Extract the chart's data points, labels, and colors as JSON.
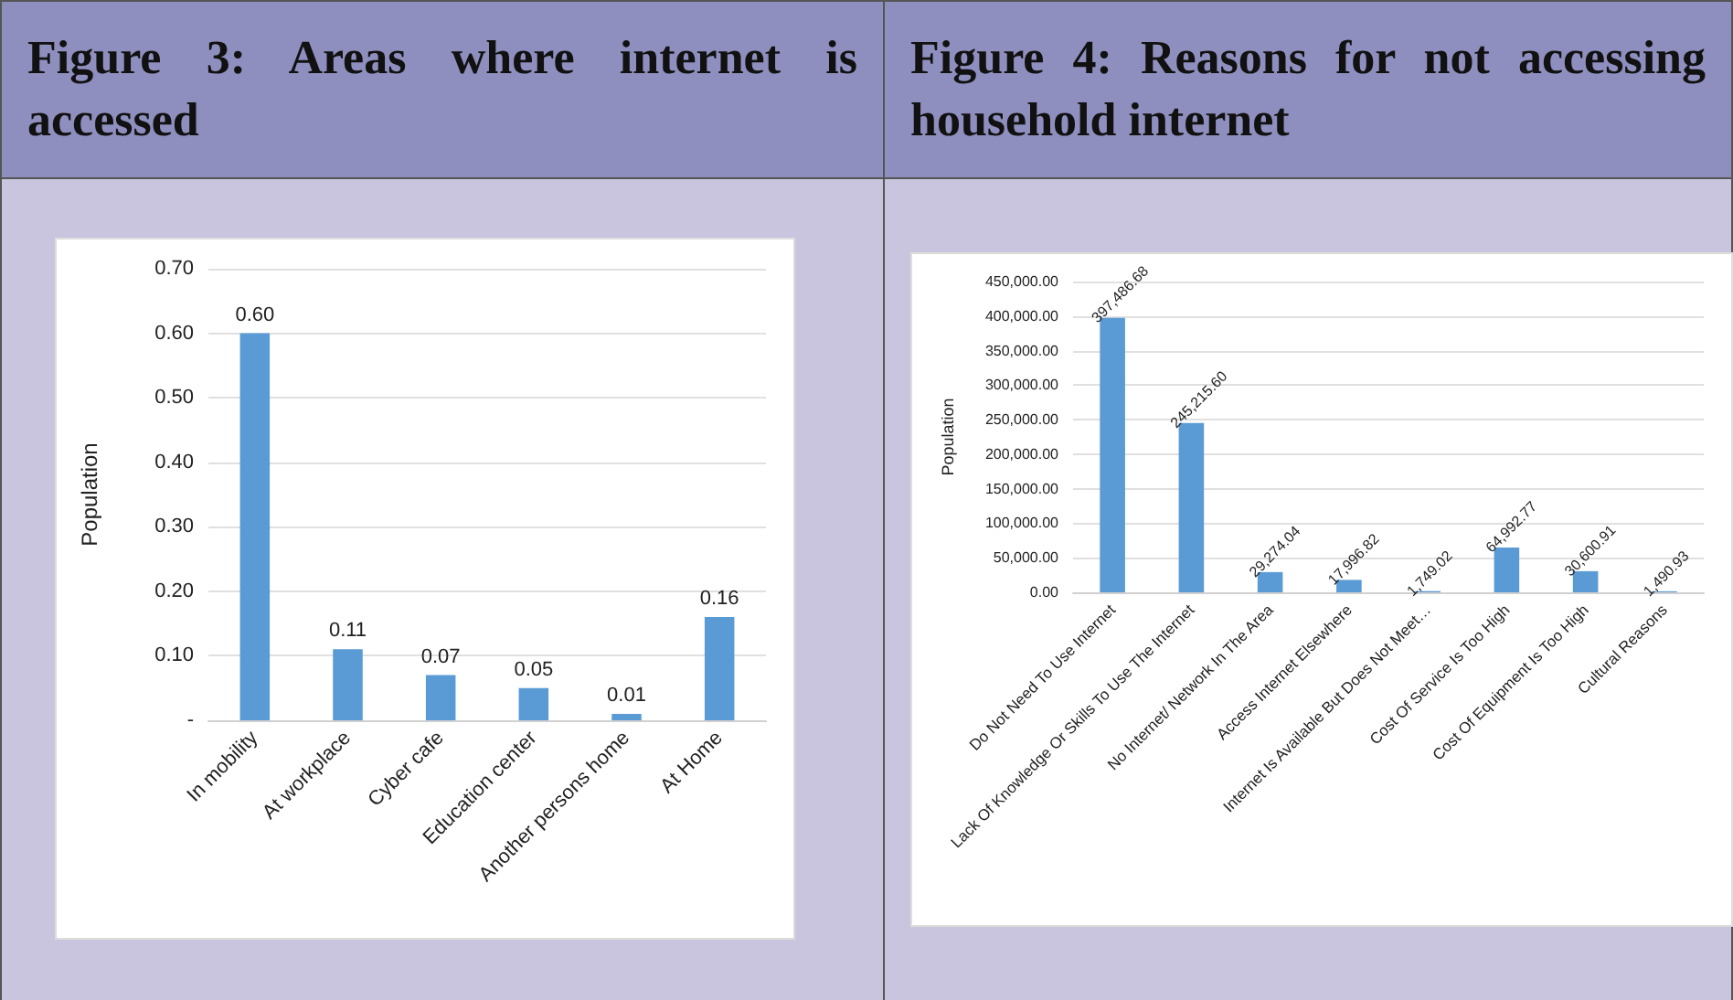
{
  "chart_data": [
    {
      "type": "bar",
      "title": "Figure 3: Areas where internet is accessed",
      "ylabel": "Population",
      "categories": [
        "In mobility",
        "At workplace",
        "Cyber cafe",
        "Education center",
        "Another persons home",
        "At Home"
      ],
      "values": [
        0.6,
        0.11,
        0.07,
        0.05,
        0.01,
        0.16
      ],
      "value_labels": [
        "0.60",
        "0.11",
        "0.07",
        "0.05",
        "0.01",
        "0.16"
      ],
      "color": "#5b9bd5",
      "ylim": [
        0,
        0.7
      ],
      "yticks": [
        {
          "value": 0,
          "label": "-"
        },
        {
          "value": 0.1,
          "label": "0.10"
        },
        {
          "value": 0.2,
          "label": "0.20"
        },
        {
          "value": 0.3,
          "label": "0.30"
        },
        {
          "value": 0.4,
          "label": "0.40"
        },
        {
          "value": 0.5,
          "label": "0.50"
        },
        {
          "value": 0.6,
          "label": "0.60"
        },
        {
          "value": 0.7,
          "label": "0.70"
        }
      ],
      "grid": "y"
    },
    {
      "type": "bar",
      "title": "Figure 4: Reasons for not accessing household internet",
      "ylabel": "Population",
      "categories": [
        "Do Not Need To Use Internet",
        "Lack Of Knowledge Or Skills To Use The Internet",
        "No Internet/ Network In The Area",
        "Access Internet Elsewhere",
        "Internet Is Available But Does Not Meet…",
        "Cost Of Service Is Too High",
        "Cost Of Equipment Is Too High",
        "Cultural Reasons"
      ],
      "values": [
        397486.68,
        245215.6,
        29274.04,
        17996.82,
        1749.02,
        64992.77,
        30600.91,
        1490.93
      ],
      "value_labels": [
        "397,486.68",
        "245,215.60",
        "29,274.04",
        "17,996.82",
        "1,749.02",
        "64,992.77",
        "30,600.91",
        "1,490.93"
      ],
      "color": "#5b9bd5",
      "ylim": [
        0,
        450000
      ],
      "yticks": [
        {
          "value": 0,
          "label": "0.00"
        },
        {
          "value": 50000,
          "label": "50,000.00"
        },
        {
          "value": 100000,
          "label": "100,000.00"
        },
        {
          "value": 150000,
          "label": "150,000.00"
        },
        {
          "value": 200000,
          "label": "200,000.00"
        },
        {
          "value": 250000,
          "label": "250,000.00"
        },
        {
          "value": 300000,
          "label": "300,000.00"
        },
        {
          "value": 350000,
          "label": "350,000.00"
        },
        {
          "value": 400000,
          "label": "400,000.00"
        },
        {
          "value": 450000,
          "label": "450,000.00"
        }
      ],
      "grid": "y"
    }
  ]
}
